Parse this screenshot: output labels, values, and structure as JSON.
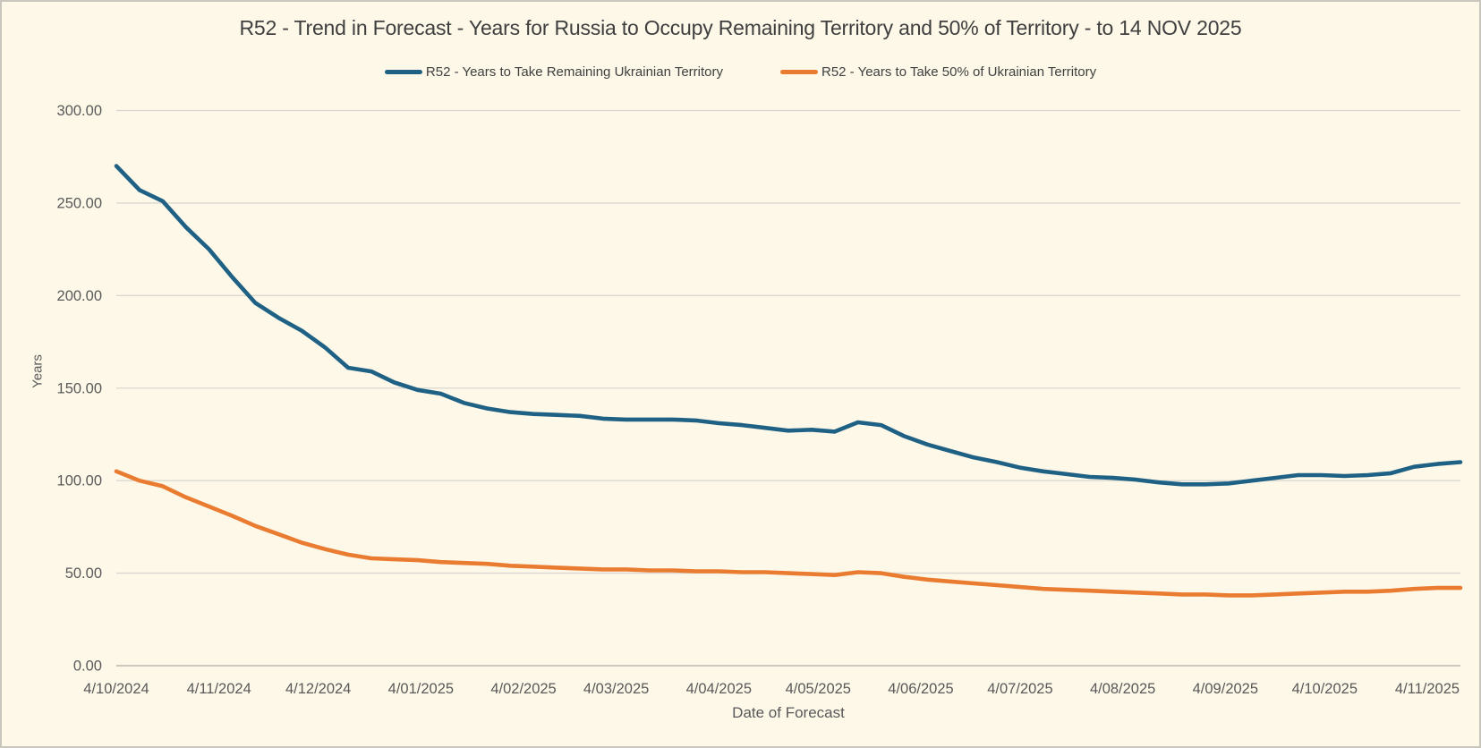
{
  "chart_data": {
    "type": "line",
    "title": "R52 - Trend in Forecast - Years for Russia to Occupy Remaining Territory and 50% of Territory - to 14 NOV 2025",
    "xlabel": "Date of Forecast",
    "ylabel": "Years",
    "ylim": [
      0,
      300
    ],
    "grid": "horizontal",
    "legend_position": "top",
    "background_color": "#fdf8e8",
    "gridline_color": "#d9d7cf",
    "axisline_color": "#c2c0b8",
    "tick_label_color": "#595959",
    "y_ticks": [
      0,
      50,
      100,
      150,
      200,
      250,
      300
    ],
    "y_tick_labels": [
      "0.00",
      "50.00",
      "100.00",
      "150.00",
      "200.00",
      "250.00",
      "300.00"
    ],
    "x_tick_labels": [
      "4/10/2024",
      "4/11/2024",
      "4/12/2024",
      "4/01/2025",
      "4/02/2025",
      "4/03/2025",
      "4/04/2025",
      "4/05/2025",
      "4/06/2025",
      "4/07/2025",
      "4/08/2025",
      "4/09/2025",
      "4/10/2025",
      "4/11/2025"
    ],
    "x_dates": [
      "4/10/2024",
      "11/10/2024",
      "18/10/2024",
      "25/10/2024",
      "1/11/2024",
      "8/11/2024",
      "15/11/2024",
      "22/11/2024",
      "29/11/2024",
      "6/12/2024",
      "13/12/2024",
      "20/12/2024",
      "27/12/2024",
      "3/01/2025",
      "10/01/2025",
      "17/01/2025",
      "24/01/2025",
      "31/01/2025",
      "7/02/2025",
      "14/02/2025",
      "21/02/2025",
      "28/02/2025",
      "7/03/2025",
      "14/03/2025",
      "21/03/2025",
      "28/03/2025",
      "4/04/2025",
      "11/04/2025",
      "18/04/2025",
      "25/04/2025",
      "2/05/2025",
      "9/05/2025",
      "16/05/2025",
      "23/05/2025",
      "30/05/2025",
      "6/06/2025",
      "13/06/2025",
      "20/06/2025",
      "27/06/2025",
      "4/07/2025",
      "11/07/2025",
      "18/07/2025",
      "25/07/2025",
      "1/08/2025",
      "8/08/2025",
      "15/08/2025",
      "22/08/2025",
      "29/08/2025",
      "5/09/2025",
      "12/09/2025",
      "19/09/2025",
      "26/09/2025",
      "3/10/2025",
      "10/10/2025",
      "17/10/2025",
      "24/10/2025",
      "31/10/2025",
      "7/11/2025",
      "14/11/2025"
    ],
    "series": [
      {
        "name": "R52 - Years to Take Remaining Ukrainian Territory",
        "color": "#1f6185",
        "values": [
          270,
          257,
          251,
          237,
          225,
          210,
          196,
          188,
          181,
          172,
          161,
          159,
          153,
          149,
          147,
          142,
          139,
          137,
          136,
          135.5,
          135,
          133.5,
          133,
          133,
          133,
          132.5,
          131,
          130,
          128.5,
          127,
          127.5,
          126.5,
          131.5,
          130,
          124,
          119.5,
          116,
          112.5,
          110,
          107,
          105,
          103.5,
          102,
          101.5,
          100.5,
          99,
          98,
          98,
          98.5,
          100,
          101.5,
          103,
          103,
          102.5,
          103,
          104,
          107.5,
          109,
          110
        ]
      },
      {
        "name": "R52 - Years to Take  50% of Ukrainian Territory",
        "color": "#ea7c31",
        "values": [
          105,
          100,
          97,
          91,
          86,
          81,
          75.5,
          71,
          66.5,
          63,
          60,
          58,
          57.5,
          57,
          56,
          55.5,
          55,
          54,
          53.5,
          53,
          52.5,
          52,
          52,
          51.5,
          51.5,
          51,
          51,
          50.5,
          50.5,
          50,
          49.5,
          49,
          50.5,
          50,
          48,
          46.5,
          45.5,
          44.5,
          43.5,
          42.5,
          41.5,
          41,
          40.5,
          40,
          39.5,
          39,
          38.5,
          38.5,
          38,
          38,
          38.5,
          39,
          39.5,
          40,
          40,
          40.5,
          41.5,
          42,
          42
        ]
      }
    ]
  }
}
